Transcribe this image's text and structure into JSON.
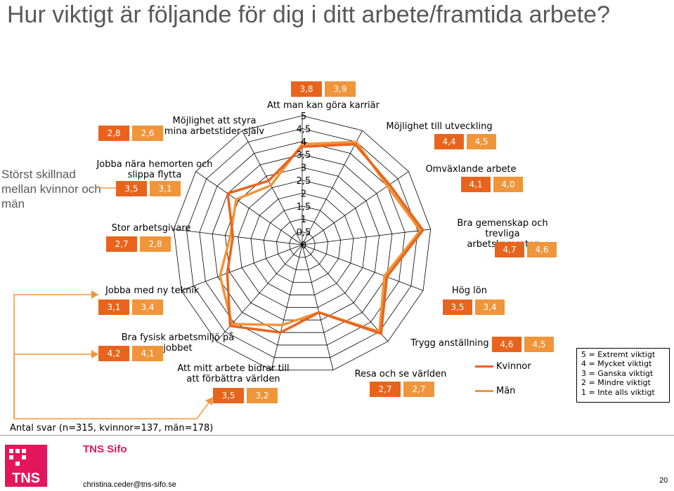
{
  "title": "Hur viktigt är följande för dig i ditt arbete/framtida arbete?",
  "side_note": "Störst skillnad mellan kvinnor och män",
  "chart_data": {
    "type": "radar",
    "rmax": 5,
    "rticks": [
      "0",
      "0,5",
      "1",
      "1,5",
      "2",
      "2,5",
      "3",
      "3,5",
      "4",
      "4,5",
      "5"
    ],
    "categories": [
      "Att man kan göra karriär",
      "Möjlighet till utveckling",
      "Omväxlande arbete",
      "Bra gemenskap och trevliga arbetskamrater",
      "Hög lön",
      "Trygg anställning",
      "Resa och se världen",
      "Att mitt arbete bidrar till att förbättra världen",
      "Bra fysisk arbetsmiljö på jobbet",
      "Jobba med ny teknik",
      "Stor arbetsgivare",
      "Jobba nära hemorten och slippa flytta",
      "Möjlighet att styra mina arbetstider själv"
    ],
    "series": [
      {
        "name": "Kvinnor",
        "color": "#e8641c",
        "values": [
          3.8,
          4.4,
          4.1,
          4.7,
          3.5,
          4.6,
          2.7,
          3.5,
          4.2,
          3.1,
          2.7,
          3.5,
          2.8
        ]
      },
      {
        "name": "Män",
        "color": "#f0953a",
        "values": [
          3.9,
          4.5,
          4.0,
          4.6,
          3.4,
          4.5,
          2.7,
          3.2,
          4.1,
          3.4,
          2.8,
          3.1,
          2.6
        ]
      }
    ],
    "value_labels": [
      [
        "3,8",
        "3,9"
      ],
      [
        "4,4",
        "4,5"
      ],
      [
        "4,1",
        "4,0"
      ],
      [
        "4,7",
        "4,6"
      ],
      [
        "3,5",
        "3,4"
      ],
      [
        "4,6",
        "4,5"
      ],
      [
        "2,7",
        "2,7"
      ],
      [
        "3,5",
        "3,2"
      ],
      [
        "4,2",
        "4,1"
      ],
      [
        "3,1",
        "3,4"
      ],
      [
        "2,7",
        "2,8"
      ],
      [
        "3,5",
        "3,1"
      ],
      [
        "2,8",
        "2,6"
      ]
    ]
  },
  "scale_legend": [
    "5 = Extremt viktigt",
    "4 = Mycket viktigt",
    "3 = Ganska viktigt",
    "2 = Mindre viktigt",
    "1 = Inte alls viktigt"
  ],
  "footer": {
    "antal": "Antal svar (n=315, kvinnor=137, män=178)",
    "brand": "TNS Sifo",
    "logo_text": "TNS",
    "email": "christina.ceder@tns-sifo.se",
    "page": "20"
  }
}
